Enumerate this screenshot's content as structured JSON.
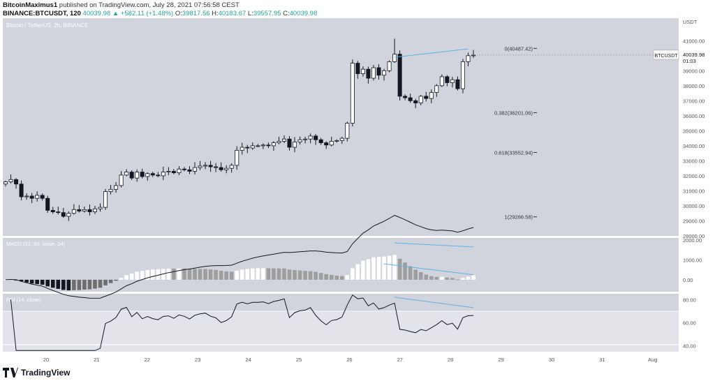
{
  "header": {
    "author": "BitcoinMaximus1",
    "published": "published on TradingView.com, July 28, 2021 07:56:58 CEST",
    "symbol": "BINANCE:BTCUSDT, 120",
    "last": "40039.98",
    "change": "▲ +582.11 (+1.48%)",
    "o_label": "O:",
    "o": "39817.56",
    "h_label": "H:",
    "h": "40183.67",
    "l_label": "L:",
    "l": "39557.95",
    "c_label": "C:",
    "c": "40039.98"
  },
  "colors": {
    "panel_bg": "#d1d4dc",
    "up": "#ffffff",
    "down": "#131722",
    "accent": "#26a69a",
    "divergence": "#5ab4e5"
  },
  "chart_data": {
    "type": "candlestick",
    "title": "Bitcoin / TetherUS, 2h, BINANCE",
    "currency": "USDT",
    "symbol_tag": "BTCUSDT",
    "price_label": "40039.98",
    "countdown": "01:03",
    "ylim": [
      28000,
      42500
    ],
    "yticks": [
      "41000.00",
      "40000.00",
      "39000.00",
      "38000.00",
      "37000.00",
      "36000.00",
      "35000.00",
      "34000.00",
      "33000.00",
      "32000.00",
      "31000.00",
      "30000.00",
      "29000.00",
      "28000.00"
    ],
    "ytick_values": [
      41000,
      40000,
      39000,
      38000,
      37000,
      36000,
      35000,
      34000,
      33000,
      32000,
      31000,
      30000,
      29000,
      28000
    ],
    "xticks": [
      "20",
      "21",
      "22",
      "23",
      "24",
      "25",
      "26",
      "27",
      "28",
      "29",
      "30",
      "31",
      "Aug"
    ],
    "fib_levels": [
      {
        "label": "0(40487.42)",
        "value": 40487.42
      },
      {
        "label": "0.382(36201.06)",
        "value": 36201.06
      },
      {
        "label": "0.618(33552.94)",
        "value": 33552.94
      },
      {
        "label": "1(29266.58)",
        "value": 29266.58
      }
    ],
    "close_series": [
      31600,
      31750,
      31450,
      30600,
      30650,
      30500,
      30700,
      30500,
      29700,
      29600,
      29550,
      29300,
      29500,
      29750,
      29650,
      29750,
      29600,
      29800,
      29900,
      30950,
      31100,
      31350,
      32050,
      32250,
      31850,
      32250,
      31950,
      32150,
      32050,
      32000,
      32250,
      32300,
      32200,
      32450,
      32400,
      32300,
      32550,
      32650,
      32700,
      32600,
      32550,
      32400,
      32500,
      32700,
      33700,
      33900,
      33850,
      34000,
      34000,
      34050,
      34000,
      34200,
      34300,
      34450,
      33900,
      34250,
      34400,
      34450,
      34650,
      34400,
      34200,
      34050,
      34300,
      34350,
      34500,
      35500,
      39500,
      38800,
      39100,
      38500,
      39200,
      38700,
      39000,
      39600,
      40100,
      37300,
      37200,
      37000,
      36850,
      37300,
      37150,
      37550,
      38000,
      38600,
      38200,
      38400,
      37800,
      39600,
      40000,
      40039.98
    ],
    "macd": {
      "label": "MACD (21, 50, close, 24)",
      "yticks": [
        "2000.00",
        "1000.00",
        "0.00"
      ],
      "ytick_values": [
        2000,
        1000,
        0
      ],
      "ylim": [
        -600,
        2100
      ]
    },
    "rsi": {
      "label": "RSI (14, close)",
      "yticks": [
        "80.00",
        "60.00",
        "40.00"
      ],
      "ytick_values": [
        80,
        60,
        40
      ],
      "band": [
        70,
        30
      ],
      "ylim": [
        35,
        85
      ]
    }
  },
  "footer": {
    "brand": "TradingView"
  }
}
